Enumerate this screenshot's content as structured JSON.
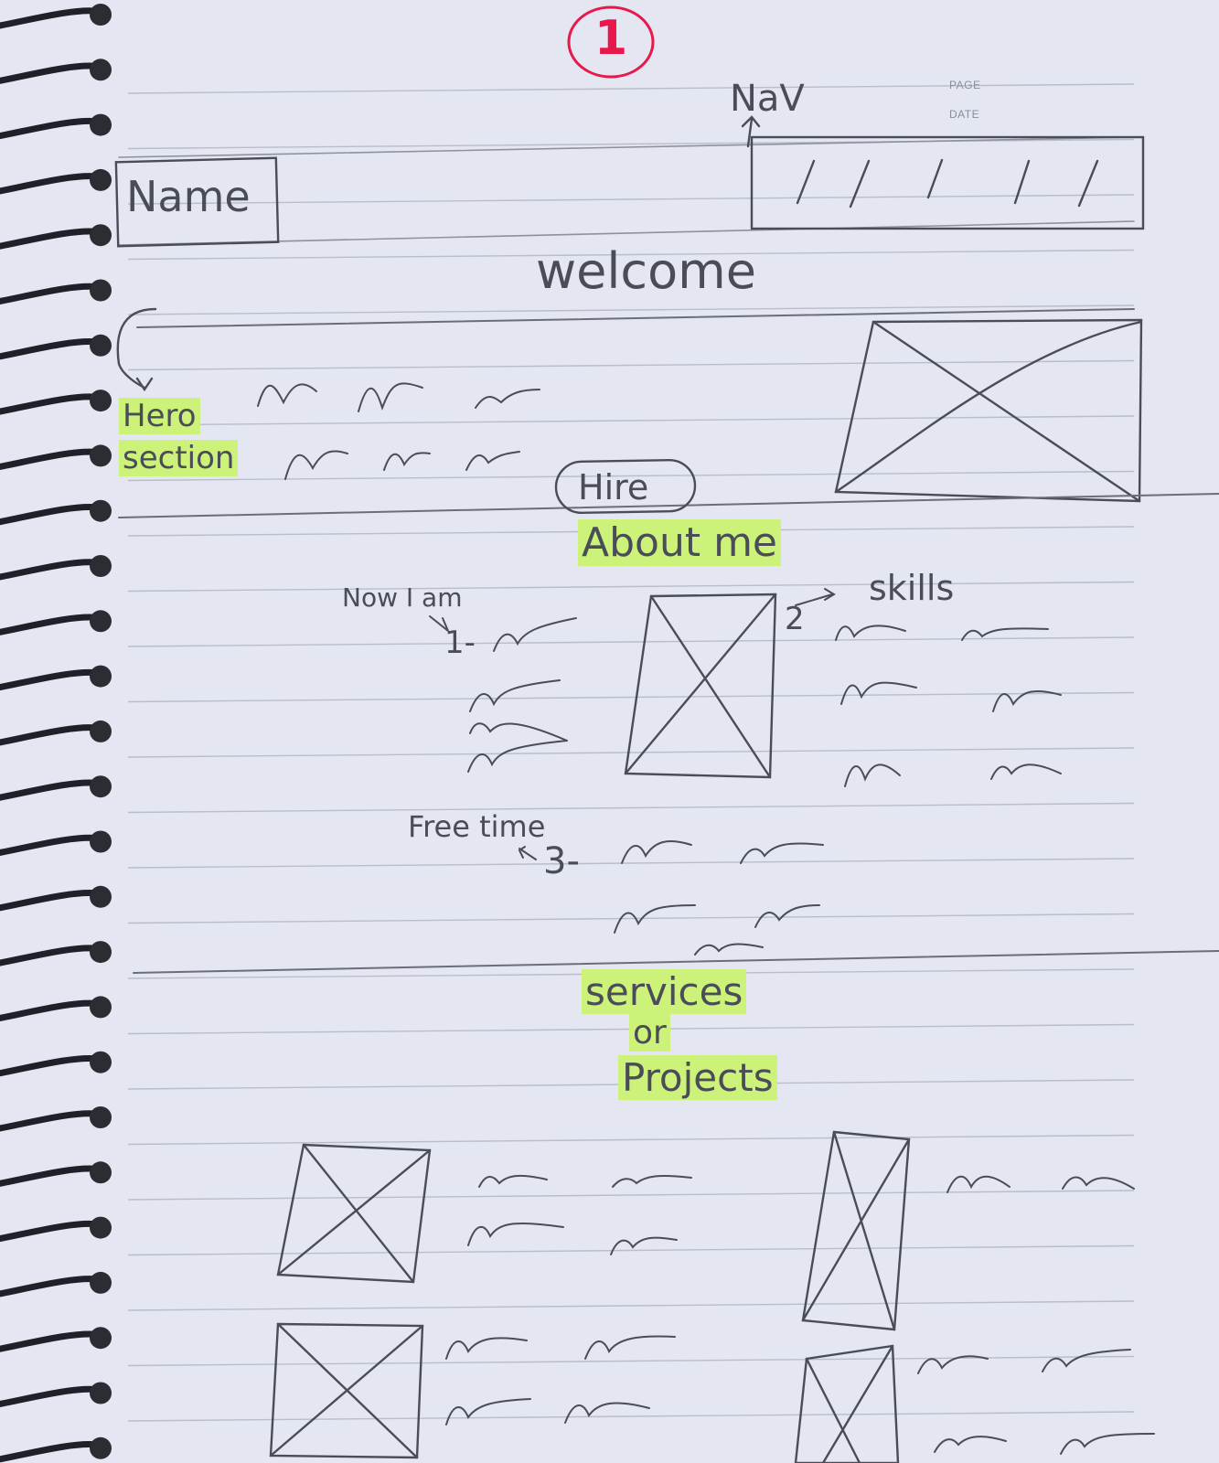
{
  "sheet": {
    "page_label": "PAGE",
    "date_label": "DATE",
    "page_number": "1"
  },
  "header": {
    "name_box": "Name",
    "nav_label": "NaV",
    "welcome": "welcome"
  },
  "hero": {
    "label_line1": "Hero",
    "label_line2": "section",
    "cta_button": "Hire"
  },
  "about": {
    "heading": "About me",
    "now_label": "Now I am",
    "item1": "1-",
    "skills_label": "skills",
    "item2": "2",
    "free_time_label": "Free time",
    "item3": "3-"
  },
  "projects": {
    "heading_line1": "services",
    "heading_line2": "or",
    "heading_line3": "Projects"
  },
  "colors": {
    "paper": "#e4e6f1",
    "ink": "#4a4d58",
    "highlight": "#cdf27a",
    "red_pen": "#e8184b",
    "rule_line": "#b9bccb"
  }
}
